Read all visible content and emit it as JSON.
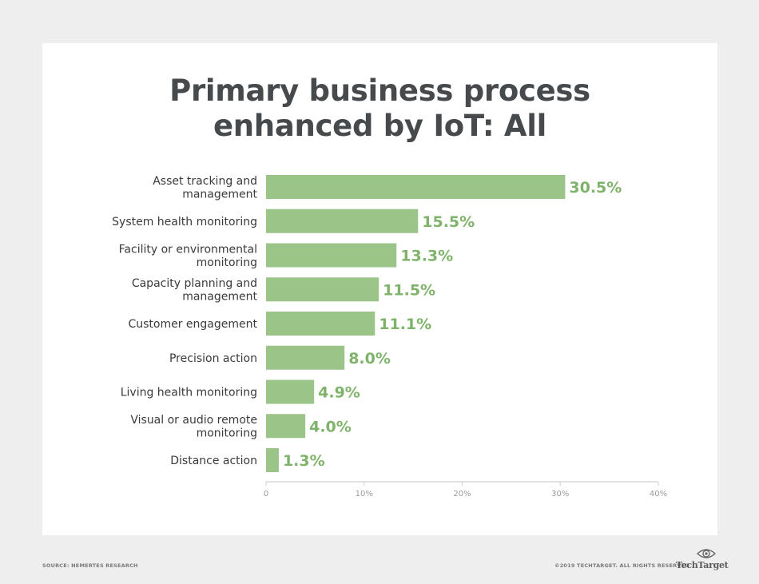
{
  "title_lines": [
    "Primary business process",
    "enhanced by IoT: All"
  ],
  "footer": {
    "source": "SOURCE: NEMERTES RESEARCH",
    "copyright": "©2019 TECHTARGET. ALL RIGHTS RESERVED",
    "logo_text": "TechTarget",
    "logo_icon": "eye-icon"
  },
  "colors": {
    "bar": "#9bc488",
    "value_label": "#7fb36b",
    "category_label": "#3a3a3a",
    "axis": "#cfcfcf",
    "tick_label": "#9a9a9a",
    "title": "#464a4c"
  },
  "chart_data": {
    "type": "bar",
    "orientation": "horizontal",
    "title": "Primary business process enhanced by IoT: All",
    "xlabel": "",
    "ylabel": "",
    "categories": [
      [
        "Asset tracking and",
        "management"
      ],
      [
        "System health monitoring"
      ],
      [
        "Facility or environmental",
        "monitoring"
      ],
      [
        "Capacity planning and",
        "management"
      ],
      [
        "Customer engagement"
      ],
      [
        "Precision action"
      ],
      [
        "Living health monitoring"
      ],
      [
        "Visual or audio remote",
        "monitoring"
      ],
      [
        "Distance action"
      ]
    ],
    "values": [
      30.5,
      15.5,
      13.3,
      11.5,
      11.1,
      8.0,
      4.9,
      4.0,
      1.3
    ],
    "value_labels": [
      "30.5%",
      "15.5%",
      "13.3%",
      "11.5%",
      "11.1%",
      "8.0%",
      "4.9%",
      "4.0%",
      "1.3%"
    ],
    "xlim": [
      0,
      40
    ],
    "xticks": [
      0,
      10,
      20,
      30,
      40
    ],
    "xtick_labels": [
      "0",
      "10%",
      "20%",
      "30%",
      "40%"
    ],
    "grid": false
  }
}
